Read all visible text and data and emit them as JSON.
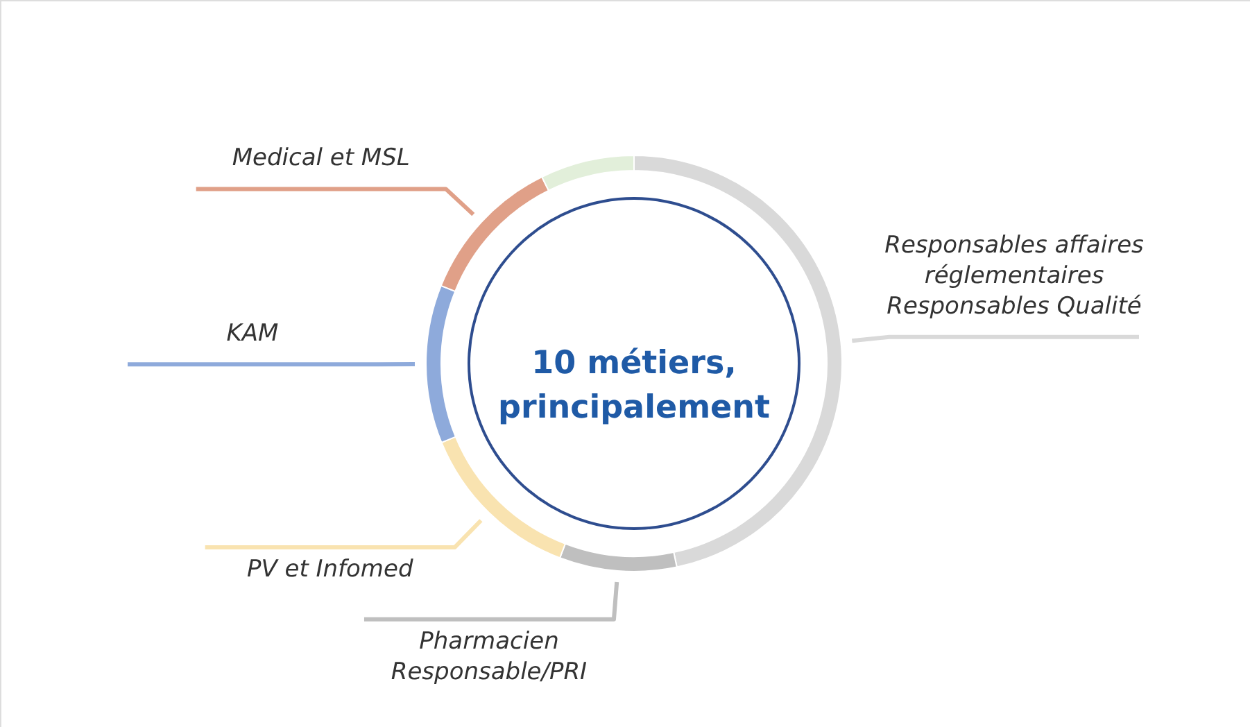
{
  "chart_data": {
    "type": "donut",
    "categories": [
      "Responsables affaires\nréglementaires\nResponsables Qualité",
      "Pharmacien\nResponsable/PRI",
      "PV et Infomed",
      "KAM",
      "Medical et MSL",
      null
    ],
    "values": [
      46.7,
      9.1,
      13.0,
      12.3,
      11.6,
      7.3
    ],
    "colors": [
      "#d9d9d9",
      "#bfbfbf",
      "#f9e3b0",
      "#8eaadb",
      "#e0a088",
      "#e2efda"
    ],
    "annotations": [
      "10 métiers,\nprincipalement"
    ]
  }
}
